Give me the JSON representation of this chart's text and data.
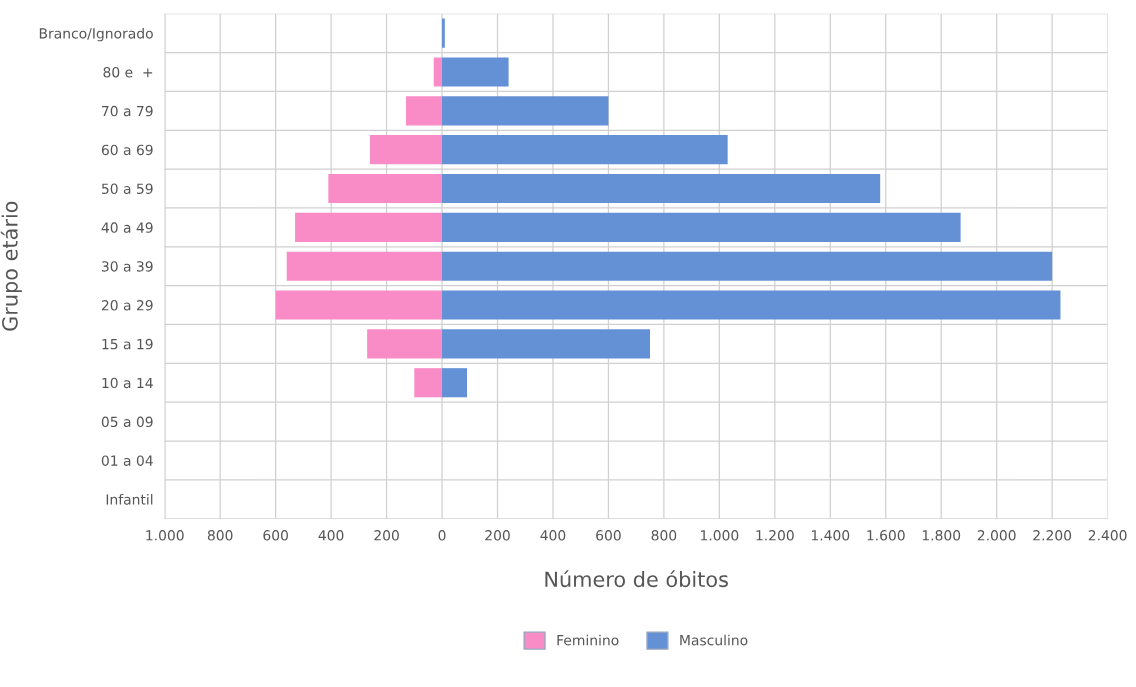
{
  "chart_data": {
    "type": "bar",
    "orientation": "horizontal",
    "xlabel": "Número de óbitos",
    "ylabel": "Grupo etário",
    "categories": [
      "Branco/Ignorado",
      "80 e  +",
      "70 a 79",
      "60 a 69",
      "50 a 59",
      "40 a 49",
      "30 a 39",
      "20 a 29",
      "15 a 19",
      "10 a 14",
      "05 a 09",
      "01 a 04",
      "Infantil"
    ],
    "series": [
      {
        "name": "Feminino",
        "color": "#f98cc6",
        "values": [
          null,
          -30,
          -130,
          -260,
          -410,
          -530,
          -560,
          -600,
          -270,
          -100,
          null,
          null,
          null
        ]
      },
      {
        "name": "Masculino",
        "color": "#6490d6",
        "values": [
          10,
          240,
          600,
          1030,
          1580,
          1870,
          2200,
          2230,
          750,
          90,
          null,
          null,
          null
        ]
      }
    ],
    "xlim": [
      -1000,
      2400
    ],
    "xticks": [
      {
        "value": -1000,
        "label": "1.000"
      },
      {
        "value": -800,
        "label": "800"
      },
      {
        "value": -600,
        "label": "600"
      },
      {
        "value": -400,
        "label": "400"
      },
      {
        "value": -200,
        "label": "200"
      },
      0,
      200,
      400,
      600,
      800,
      {
        "value": 1000,
        "label": "1.000"
      },
      {
        "value": 1200,
        "label": "1.200"
      },
      {
        "value": 1400,
        "label": "1.400"
      },
      {
        "value": 1600,
        "label": "1.600"
      },
      {
        "value": 1800,
        "label": "1.800"
      },
      {
        "value": 2000,
        "label": "2.000"
      },
      {
        "value": 2200,
        "label": "2.200"
      },
      {
        "value": 2400,
        "label": "2.400"
      }
    ],
    "stacked": true,
    "grid": true,
    "legend": "bottom"
  }
}
